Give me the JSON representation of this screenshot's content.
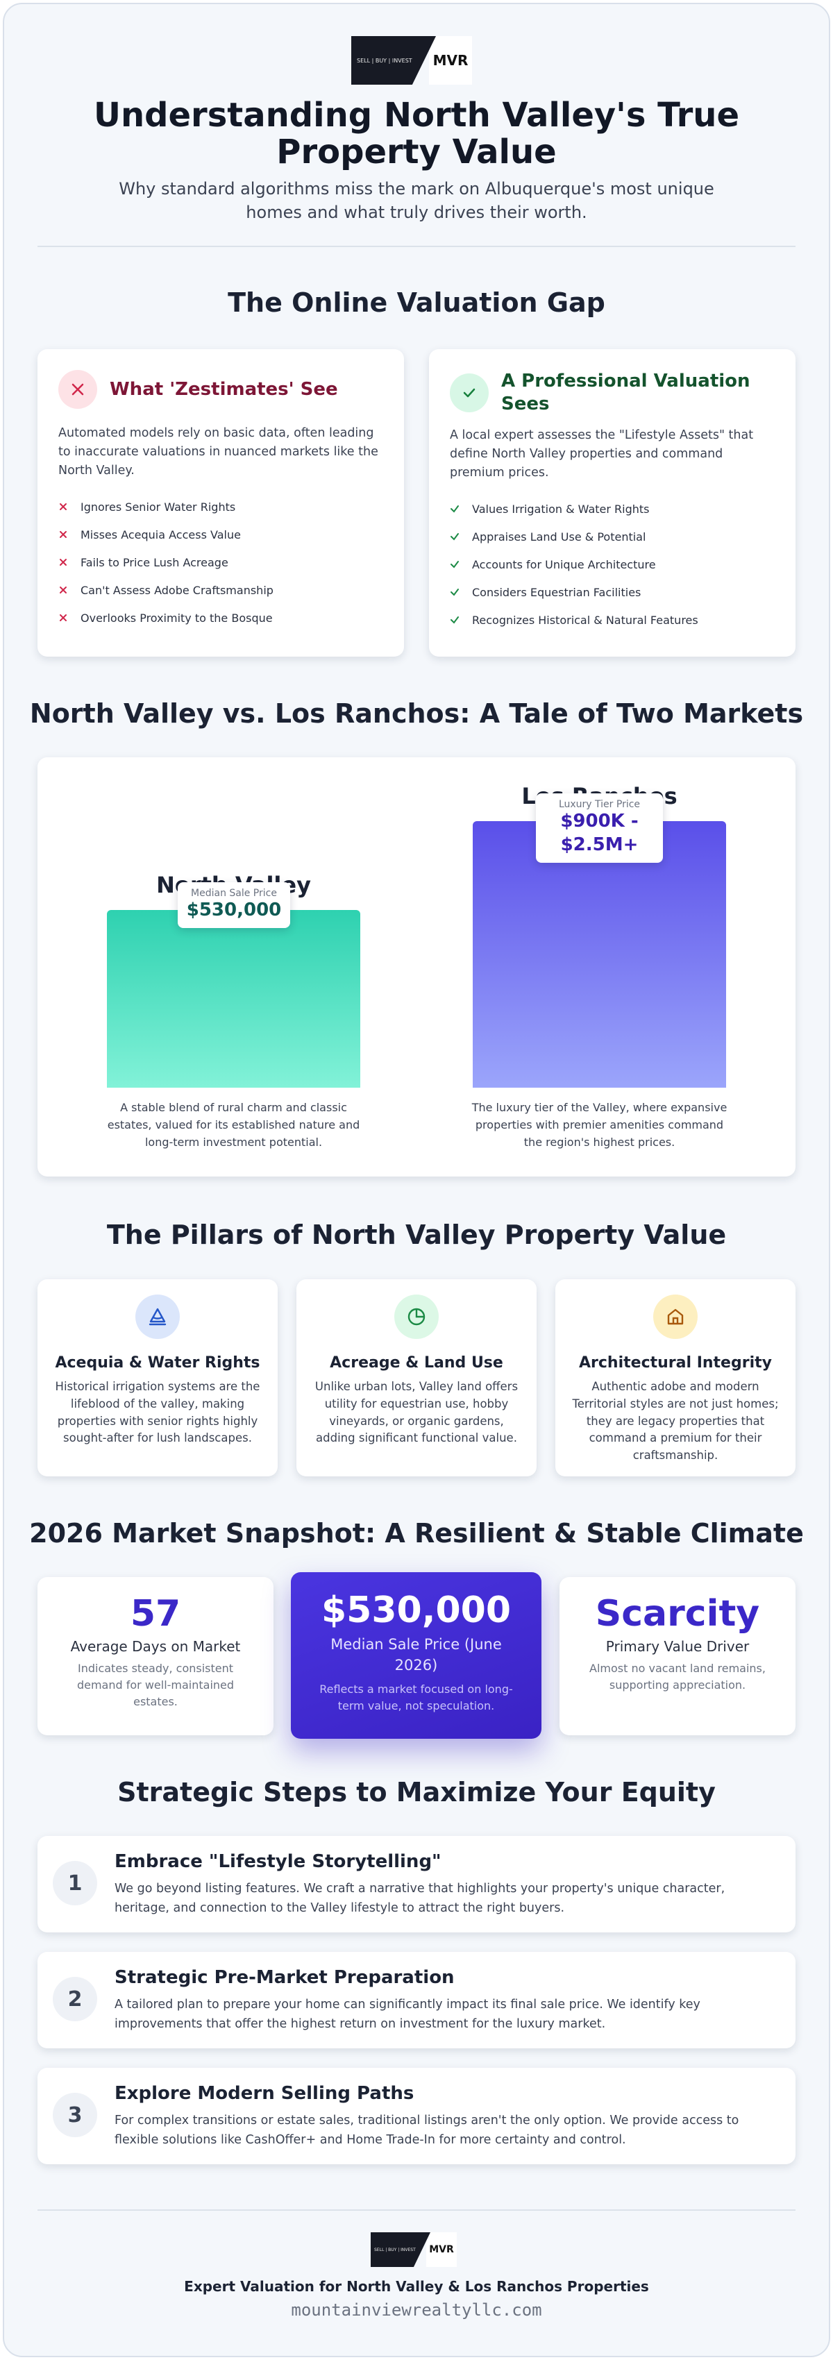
{
  "header": {
    "logo": {
      "tagline": "SELL | BUY | INVEST",
      "mark": "MVR"
    },
    "title": "Understanding North Valley's True Property Value",
    "subtitle": "Why standard algorithms miss the mark on Albuquerque's most unique homes and what truly drives their worth."
  },
  "valuation_gap": {
    "title": "The Online Valuation Gap",
    "cards": [
      {
        "title": "What 'Zestimates' See",
        "intro": "Automated models rely on basic data, often leading to inaccurate valuations in nuanced markets like the North Valley.",
        "items": [
          "Ignores Senior Water Rights",
          "Misses Acequia Access Value",
          "Fails to Price Lush Acreage",
          "Can't Assess Adobe Craftsmanship",
          "Overlooks Proximity to the Bosque"
        ]
      },
      {
        "title": "A Professional Valuation Sees",
        "intro": "A local expert assesses the \"Lifestyle Assets\" that define North Valley properties and command premium prices.",
        "items": [
          "Values Irrigation & Water Rights",
          "Appraises Land Use & Potential",
          "Accounts for Unique Architecture",
          "Considers Equestrian Facilities",
          "Recognizes Historical & Natural Features"
        ]
      }
    ]
  },
  "markets": {
    "title": "North Valley vs. Los Ranchos: A Tale of Two Markets",
    "columns": [
      {
        "name": "North Valley",
        "badge_label": "Median Sale Price",
        "badge_value": "$530,000",
        "description": "A stable blend of rural charm and classic estates, valued for its established nature and long-term investment potential."
      },
      {
        "name": "Los Ranchos",
        "badge_label": "Luxury Tier Price",
        "badge_value": "$900K - $2.5M+",
        "description": "The luxury tier of the Valley, where expansive properties with premier amenities command the region's highest prices."
      }
    ]
  },
  "pillars": {
    "title": "The Pillars of North Valley Property Value",
    "items": [
      {
        "title": "Acequia & Water Rights",
        "text": "Historical irrigation systems are the lifeblood of the valley, making properties with senior rights highly sought-after for lush landscapes."
      },
      {
        "title": "Acreage & Land Use",
        "text": "Unlike urban lots, Valley land offers utility for equestrian use, hobby vineyards, or organic gardens, adding significant functional value."
      },
      {
        "title": "Architectural Integrity",
        "text": "Authentic adobe and modern Territorial styles are not just homes; they are legacy properties that command a premium for their craftsmanship."
      }
    ]
  },
  "snapshot": {
    "title": "2026 Market Snapshot: A Resilient & Stable Climate",
    "stats": [
      {
        "value": "57",
        "label": "Average Days on Market",
        "note": "Indicates steady, consistent demand for well-maintained estates."
      },
      {
        "value": "$530,000",
        "label": "Median Sale Price (June 2026)",
        "note": "Reflects a market focused on long-term value, not speculation."
      },
      {
        "value": "Scarcity",
        "label": "Primary Value Driver",
        "note": "Almost no vacant land remains, supporting appreciation."
      }
    ]
  },
  "steps": {
    "title": "Strategic Steps to Maximize Your Equity",
    "items": [
      {
        "number": "1",
        "title": "Embrace \"Lifestyle Storytelling\"",
        "text": "We go beyond listing features. We craft a narrative that highlights your property's unique character, heritage, and connection to the Valley lifestyle to attract the right buyers."
      },
      {
        "number": "2",
        "title": "Strategic Pre-Market Preparation",
        "text": "A tailored plan to prepare your home can significantly impact its final sale price. We identify key improvements that offer the highest return on investment for the luxury market."
      },
      {
        "number": "3",
        "title": "Explore Modern Selling Paths",
        "text": "For complex transitions or estate sales, traditional listings aren't the only option. We provide access to flexible solutions like CashOffer+ and Home Trade-In for more certainty and control."
      }
    ]
  },
  "footer": {
    "tagline": "Expert Valuation for North Valley & Los Ranchos Properties",
    "website": "mountainviewrealtyllc.com"
  }
}
